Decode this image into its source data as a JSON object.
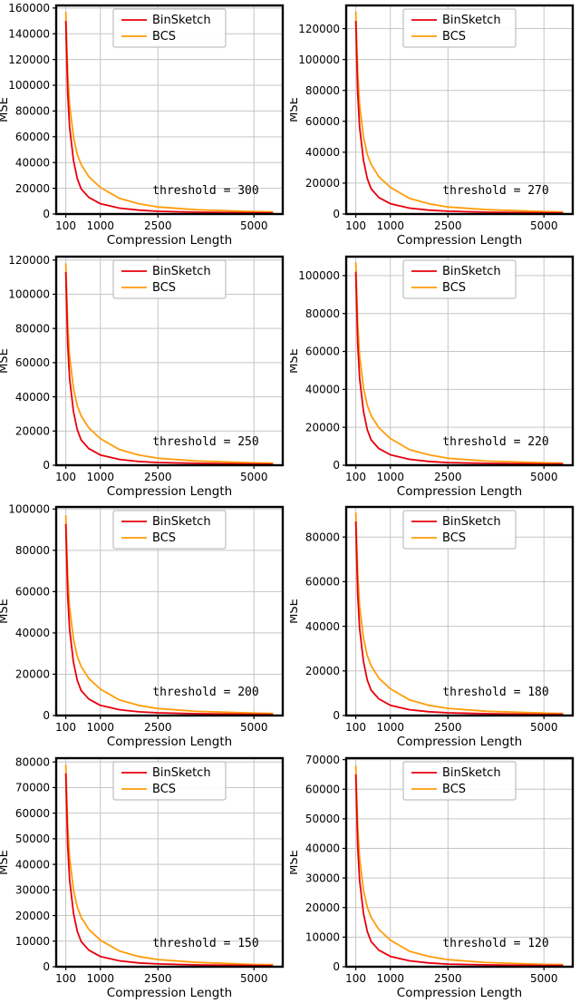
{
  "colors": {
    "binsketch": "#e8000d",
    "bcs": "#ff9c0a",
    "grid": "#c6c6c6",
    "spine": "#000000",
    "background": "#ffffff",
    "legend_border": "#b0b0b0"
  },
  "legend": {
    "labels": [
      "BinSketch",
      "BCS"
    ]
  },
  "axes": {
    "xlabel": "Compression Length",
    "ylabel": "MSE",
    "xlim": [
      -150,
      5750
    ],
    "xticks": [
      100,
      1000,
      2500,
      5000
    ],
    "x": [
      100,
      150,
      200,
      300,
      400,
      500,
      700,
      1000,
      1500,
      2000,
      2500,
      3500,
      5000,
      5500
    ]
  },
  "chart_data": [
    {
      "type": "line",
      "threshold": 300,
      "threshold_label": "threshold = 300",
      "ylim": [
        0,
        162000
      ],
      "yticks": [
        0,
        20000,
        40000,
        60000,
        80000,
        100000,
        120000,
        140000,
        160000
      ],
      "series": [
        {
          "name": "BinSketch",
          "color_key": "binsketch",
          "values": [
            150000,
            94200,
            67500,
            41600,
            27500,
            19600,
            12900,
            8000,
            4600,
            3000,
            2100,
            1400,
            900,
            850
          ]
        },
        {
          "name": "BCS",
          "color_key": "bcs",
          "values": [
            157000,
            110000,
            84800,
            59700,
            46300,
            38500,
            29000,
            20700,
            12100,
            8000,
            5500,
            3300,
            1900,
            1600
          ]
        }
      ]
    },
    {
      "type": "line",
      "threshold": 270,
      "threshold_label": "threshold = 270",
      "ylim": [
        0,
        135000
      ],
      "yticks": [
        0,
        20000,
        40000,
        60000,
        80000,
        100000,
        120000
      ],
      "series": [
        {
          "name": "BinSketch",
          "color_key": "binsketch",
          "values": [
            125000,
            78600,
            56300,
            34700,
            22900,
            16400,
            10700,
            6700,
            3800,
            2500,
            1800,
            1200,
            800,
            700
          ]
        },
        {
          "name": "BCS",
          "color_key": "bcs",
          "values": [
            131000,
            91700,
            70700,
            49800,
            38600,
            32100,
            24200,
            17300,
            10100,
            6700,
            4600,
            2800,
            1600,
            1300
          ]
        }
      ]
    },
    {
      "type": "line",
      "threshold": 250,
      "threshold_label": "threshold = 250",
      "ylim": [
        0,
        122000
      ],
      "yticks": [
        0,
        20000,
        40000,
        60000,
        80000,
        100000,
        120000
      ],
      "series": [
        {
          "name": "BinSketch",
          "color_key": "binsketch",
          "values": [
            113000,
            70800,
            50700,
            31300,
            20700,
            14800,
            9700,
            6000,
            3400,
            2200,
            1600,
            1100,
            700,
            600
          ]
        },
        {
          "name": "BCS",
          "color_key": "bcs",
          "values": [
            118000,
            82600,
            63700,
            44800,
            34800,
            28900,
            21800,
            15600,
            9100,
            6000,
            4100,
            2500,
            1400,
            1200
          ]
        }
      ]
    },
    {
      "type": "line",
      "threshold": 220,
      "threshold_label": "threshold = 220",
      "ylim": [
        0,
        110000
      ],
      "yticks": [
        0,
        20000,
        40000,
        60000,
        80000,
        100000
      ],
      "series": [
        {
          "name": "BinSketch",
          "color_key": "binsketch",
          "values": [
            102000,
            64200,
            46000,
            28400,
            18700,
            13400,
            8800,
            5500,
            3100,
            2000,
            1400,
            1000,
            600,
            600
          ]
        },
        {
          "name": "BCS",
          "color_key": "bcs",
          "values": [
            107000,
            74900,
            57800,
            40700,
            31600,
            26200,
            19800,
            14100,
            8200,
            5500,
            3700,
            2200,
            1300,
            1100
          ]
        }
      ]
    },
    {
      "type": "line",
      "threshold": 200,
      "threshold_label": "threshold = 200",
      "ylim": [
        0,
        101000
      ],
      "yticks": [
        0,
        20000,
        40000,
        60000,
        80000,
        100000
      ],
      "series": [
        {
          "name": "BinSketch",
          "color_key": "binsketch",
          "values": [
            92700,
            58200,
            41700,
            25700,
            17000,
            12100,
            8000,
            4900,
            2800,
            1800,
            1300,
            900,
            600,
            500
          ]
        },
        {
          "name": "BCS",
          "color_key": "bcs",
          "values": [
            97000,
            67900,
            52400,
            36900,
            28600,
            23800,
            17900,
            12800,
            7500,
            4900,
            3400,
            2000,
            1200,
            1000
          ]
        }
      ]
    },
    {
      "type": "line",
      "threshold": 180,
      "threshold_label": "threshold = 180",
      "ylim": [
        0,
        93500
      ],
      "yticks": [
        0,
        20000,
        40000,
        60000,
        80000
      ],
      "series": [
        {
          "name": "BinSketch",
          "color_key": "binsketch",
          "values": [
            87000,
            54600,
            39100,
            24100,
            15900,
            11400,
            7500,
            4600,
            2600,
            1700,
            1200,
            800,
            500,
            500
          ]
        },
        {
          "name": "BCS",
          "color_key": "bcs",
          "values": [
            91000,
            63700,
            49100,
            34600,
            26800,
            22300,
            16800,
            12000,
            7000,
            4600,
            3200,
            1900,
            1100,
            900
          ]
        }
      ]
    },
    {
      "type": "line",
      "threshold": 150,
      "threshold_label": "threshold = 150",
      "ylim": [
        0,
        81500
      ],
      "yticks": [
        0,
        10000,
        20000,
        30000,
        40000,
        50000,
        60000,
        70000,
        80000
      ],
      "series": [
        {
          "name": "BinSketch",
          "color_key": "binsketch",
          "values": [
            75500,
            47400,
            34000,
            20900,
            13800,
            9900,
            6500,
            4000,
            2300,
            1500,
            1100,
            700,
            500,
            400
          ]
        },
        {
          "name": "BCS",
          "color_key": "bcs",
          "values": [
            79000,
            55300,
            42700,
            30000,
            23300,
            19400,
            14600,
            10400,
            6100,
            4000,
            2800,
            1700,
            900,
            800
          ]
        }
      ]
    },
    {
      "type": "line",
      "threshold": 120,
      "threshold_label": "threshold = 120",
      "ylim": [
        0,
        70500
      ],
      "yticks": [
        0,
        10000,
        20000,
        30000,
        40000,
        50000,
        60000,
        70000
      ],
      "series": [
        {
          "name": "BinSketch",
          "color_key": "binsketch",
          "values": [
            65000,
            40800,
            29200,
            18000,
            11900,
            8500,
            5600,
            3500,
            2000,
            1300,
            900,
            600,
            400,
            400
          ]
        },
        {
          "name": "BCS",
          "color_key": "bcs",
          "values": [
            68000,
            47600,
            36700,
            25800,
            20100,
            16700,
            12600,
            9000,
            5200,
            3500,
            2400,
            1400,
            800,
            700
          ]
        }
      ]
    }
  ]
}
